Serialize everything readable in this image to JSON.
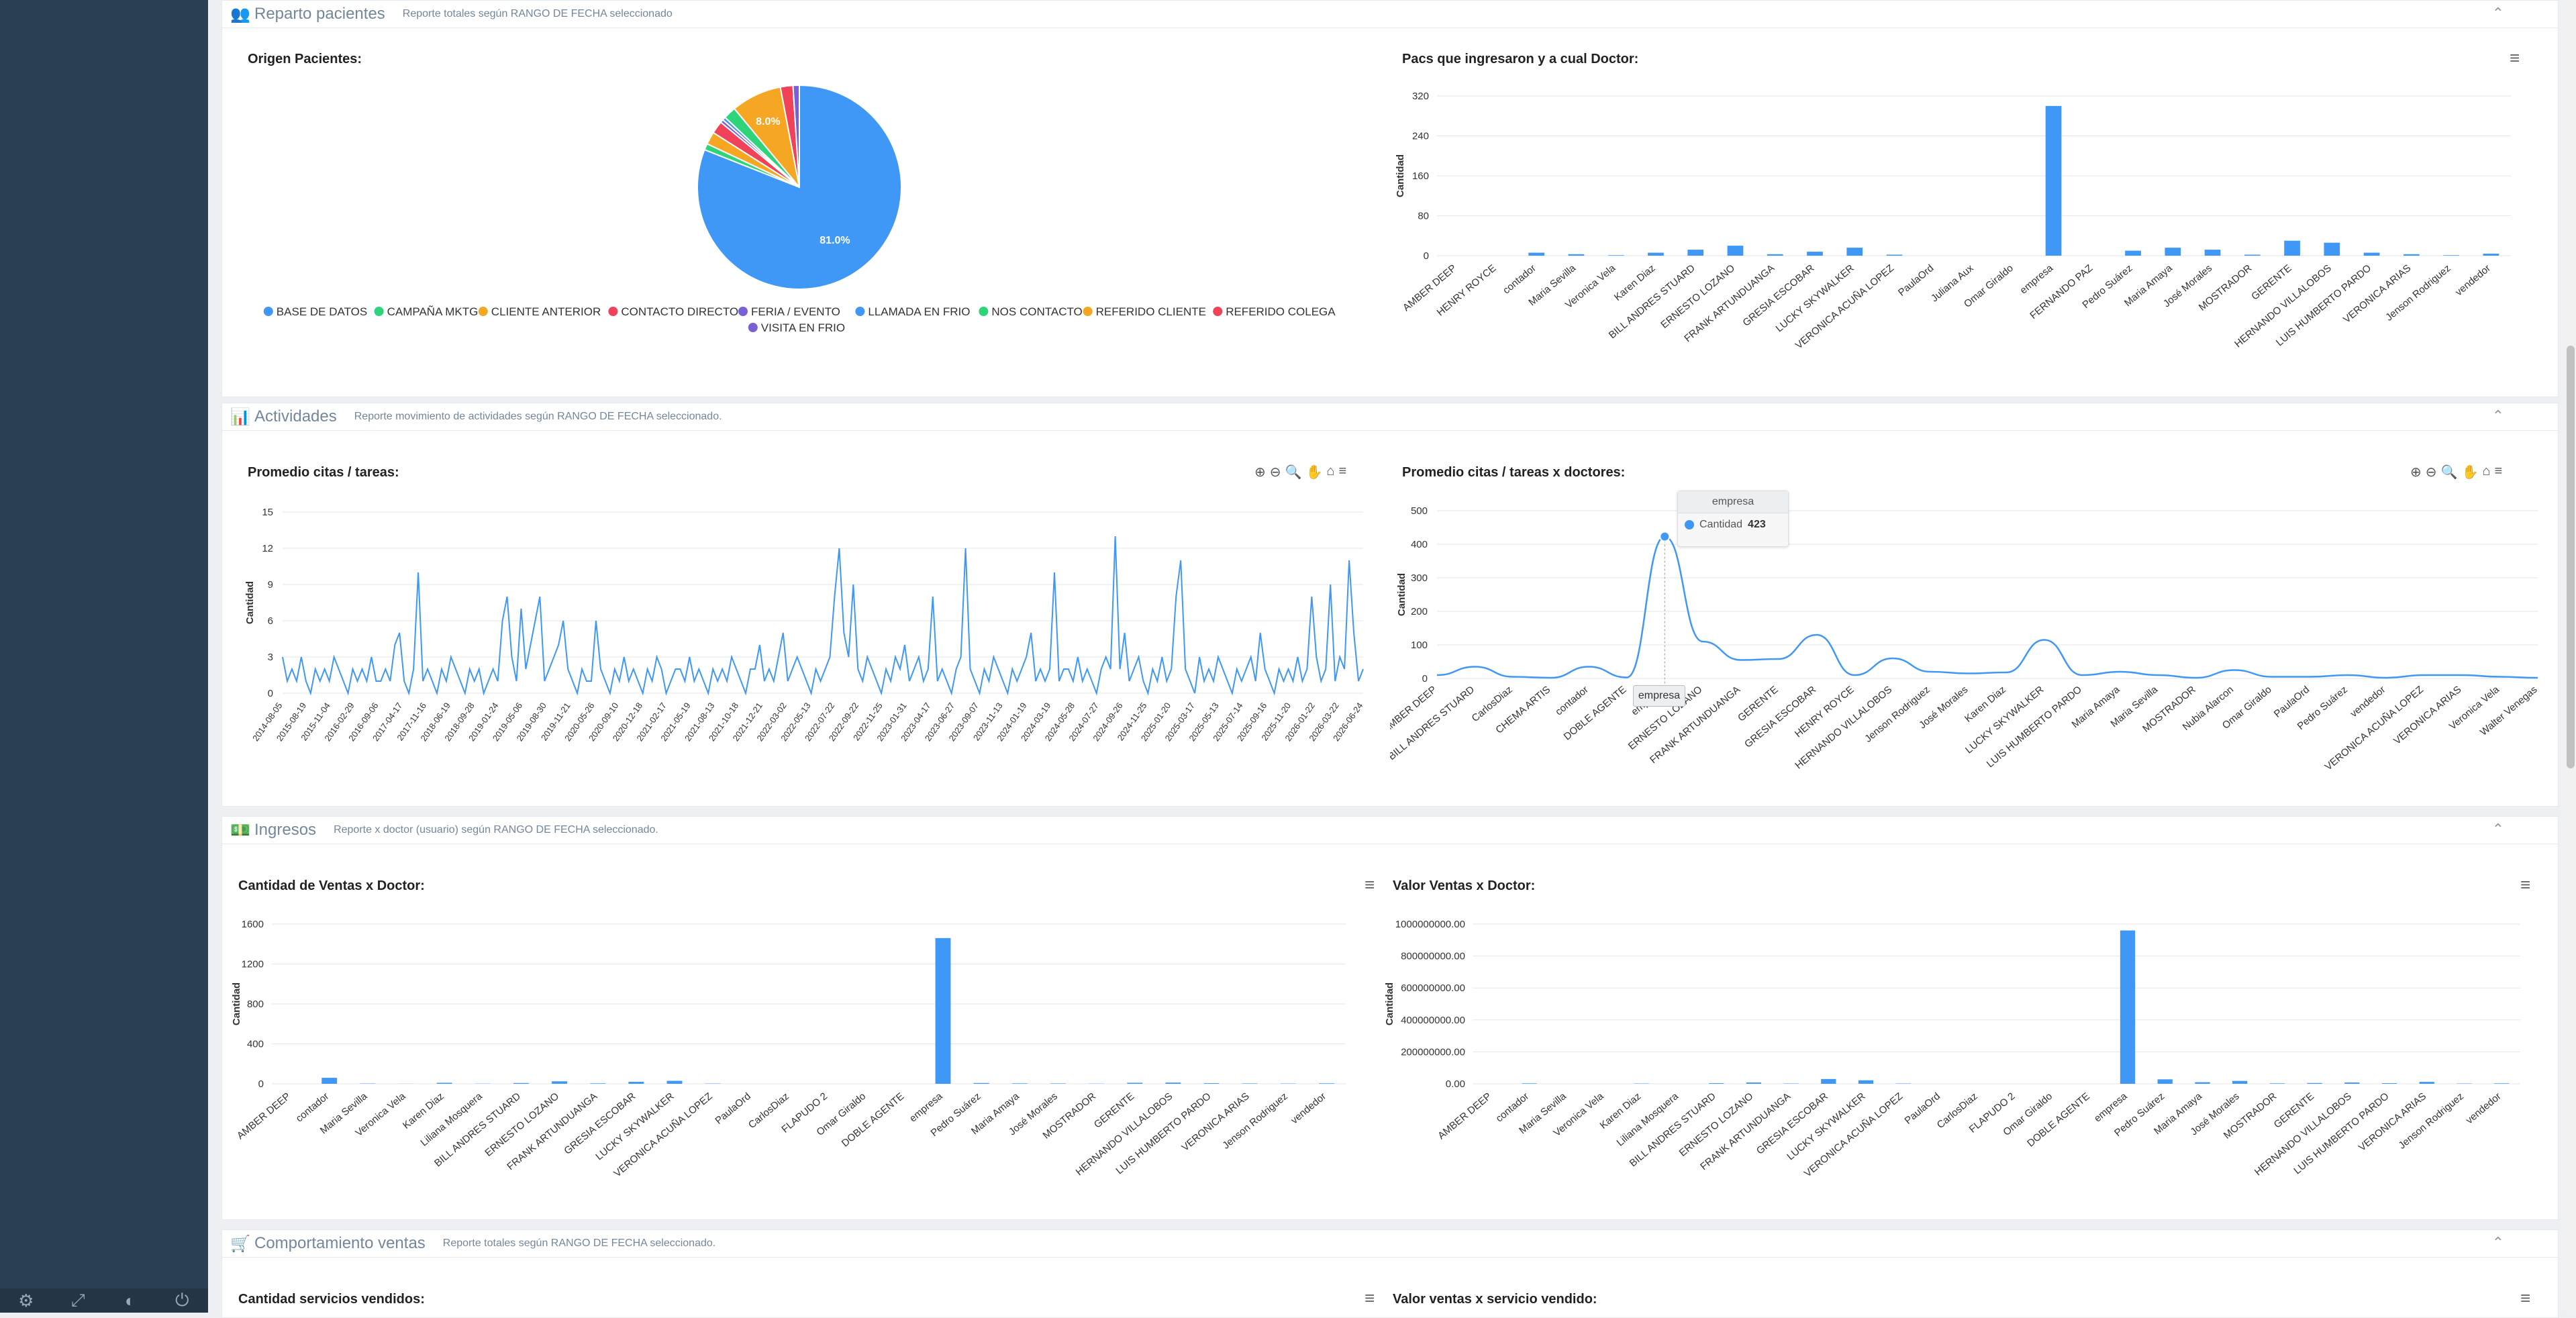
{
  "sidebar": {
    "footer_icons": [
      "gear-icon",
      "fullscreen-icon",
      "eye-slash-icon",
      "power-icon"
    ]
  },
  "colors": {
    "accent": "#3f97f6",
    "panel_text": "#73879c",
    "sidebar": "#2a3f54"
  },
  "panels": {
    "reparto": {
      "icon": "users-icon",
      "title": "Reparto pacientes",
      "subtitle": "Reporte totales según RANGO DE FECHA seleccionado"
    },
    "actividades": {
      "icon": "bar-chart-icon",
      "title": "Actividades",
      "subtitle": "Reporte movimiento de actividades según RANGO DE FECHA seleccionado."
    },
    "ingresos": {
      "icon": "money-icon",
      "title": "Ingresos",
      "subtitle": "Reporte x doctor (usuario) según RANGO DE FECHA seleccionado."
    },
    "comportamiento": {
      "icon": "cart-icon",
      "title": "Comportamiento ventas",
      "subtitle": "Reporte totales según RANGO DE FECHA seleccionado."
    }
  },
  "chart_titles": {
    "origen": "Origen Pacientes:",
    "pacs": "Pacs que ingresaron y a cual Doctor:",
    "promedio": "Promedio citas / tareas:",
    "promedio_doc": "Promedio citas / tareas x doctores:",
    "cant_ventas": "Cantidad de Ventas x Doctor:",
    "valor_ventas": "Valor Ventas x Doctor:",
    "servicios": "Cantidad servicios vendidos:",
    "valor_servicios": "Valor ventas x servicio vendido:"
  },
  "tooltip": {
    "title": "empresa",
    "series": "Cantidad",
    "value": "423",
    "crosshair_label": "empresa"
  },
  "chart_data": [
    {
      "id": "origen",
      "type": "pie",
      "slices": [
        {
          "label": "BASE DE DATOS",
          "value": 81.0,
          "color": "#3f97f6",
          "data_label": "81.0%"
        },
        {
          "label": "CAMPAÑA MKTG",
          "value": 1.0,
          "color": "#2ed47a"
        },
        {
          "label": "CLIENTE ANTERIOR",
          "value": 2.0,
          "color": "#f5a623"
        },
        {
          "label": "CONTACTO DIRECTO",
          "value": 2.0,
          "color": "#f0435a"
        },
        {
          "label": "FERIA / EVENTO",
          "value": 0.5,
          "color": "#7b5fd6"
        },
        {
          "label": "LLAMADA EN FRIO",
          "value": 0.5,
          "color": "#3f97f6"
        },
        {
          "label": "NOS CONTACTO",
          "value": 2.0,
          "color": "#2ed47a"
        },
        {
          "label": "REFERIDO CLIENTE",
          "value": 8.0,
          "color": "#f5a623",
          "data_label": "8.0%"
        },
        {
          "label": "REFERIDO COLEGA",
          "value": 2.0,
          "color": "#f0435a"
        },
        {
          "label": "VISITA EN FRIO",
          "value": 1.0,
          "color": "#7b5fd6"
        }
      ]
    },
    {
      "id": "pacs",
      "type": "bar",
      "ylabel": "Cantidad",
      "ylim": [
        0,
        320
      ],
      "yticks": [
        0,
        80,
        160,
        240,
        320
      ],
      "categories": [
        "AMBER DEEP",
        "HENRY ROYCE",
        "contador",
        "Maria Sevilla",
        "Veronica Vela",
        "Karen Diaz",
        "BILL ANDRES STUARD",
        "ERNESTO LOZANO",
        "FRANK ARTUNDUANGA",
        "GRESIA ESCOBAR",
        "LUCKY SKYWALKER",
        "VERONICA ACUÑA LOPEZ",
        "PaulaOrd",
        "Juliana Aux",
        "Omar Giraldo",
        "empresa",
        "FERNANDO PAZ",
        "Pedro Suárez",
        "Maria Amaya",
        "José Morales",
        "MOSTRADOR",
        "GERENTE",
        "HERNANDO VILLALOBOS",
        "LUIS HUMBERTO PARDO",
        "VERONICA ARIAS",
        "Jenson Rodriguez",
        "vendedor"
      ],
      "values": [
        0,
        0,
        6,
        3,
        1,
        6,
        12,
        20,
        3,
        8,
        16,
        2,
        0,
        0,
        0,
        300,
        0,
        10,
        16,
        12,
        2,
        30,
        26,
        6,
        3,
        1,
        4
      ]
    },
    {
      "id": "promedio",
      "type": "line",
      "ylabel": "Cantidad",
      "ylim": [
        0,
        15
      ],
      "yticks": [
        0,
        3,
        6,
        9,
        12,
        15
      ],
      "x_ticks": [
        "2014-08-05",
        "2015-08-19",
        "2015-11-04",
        "2016-02-29",
        "2016-09-06",
        "2017-04-17",
        "2017-11-16",
        "2018-06-19",
        "2018-09-28",
        "2019-01-24",
        "2019-05-06",
        "2019-08-30",
        "2019-11-21",
        "2020-05-26",
        "2020-09-10",
        "2020-12-18",
        "2021-02-17",
        "2021-05-19",
        "2021-08-13",
        "2021-10-18",
        "2021-12-21",
        "2022-03-02",
        "2022-05-13",
        "2022-07-22",
        "2022-09-22",
        "2022-11-25",
        "2023-01-31",
        "2023-04-17",
        "2023-06-27",
        "2023-09-07",
        "2023-11-13",
        "2024-01-19",
        "2024-03-19",
        "2024-05-28",
        "2024-07-27",
        "2024-09-26",
        "2024-11-25",
        "2025-01-20",
        "2025-03-17",
        "2025-05-13",
        "2025-07-14",
        "2025-09-16",
        "2025-11-20",
        "2026-01-22",
        "2026-03-22",
        "2026-06-24"
      ],
      "values": [
        3,
        1,
        2,
        1,
        3,
        1,
        0,
        2,
        1,
        2,
        1,
        3,
        2,
        1,
        0,
        2,
        1,
        2,
        1,
        3,
        1,
        1,
        2,
        1,
        4,
        5,
        1,
        0,
        2,
        10,
        1,
        2,
        1,
        0,
        2,
        1,
        3,
        2,
        1,
        0,
        2,
        1,
        2,
        0,
        1,
        2,
        1,
        6,
        8,
        3,
        1,
        7,
        2,
        4,
        6,
        8,
        1,
        2,
        3,
        4,
        6,
        2,
        1,
        0,
        2,
        1,
        1,
        6,
        2,
        1,
        0,
        2,
        1,
        3,
        1,
        2,
        1,
        0,
        2,
        1,
        3,
        2,
        0,
        1,
        2,
        2,
        1,
        3,
        1,
        2,
        1,
        0,
        2,
        1,
        2,
        1,
        3,
        2,
        1,
        0,
        2,
        2,
        4,
        1,
        2,
        1,
        3,
        5,
        1,
        2,
        3,
        2,
        1,
        0,
        2,
        1,
        2,
        3,
        8,
        12,
        5,
        3,
        9,
        2,
        1,
        3,
        2,
        1,
        0,
        2,
        1,
        3,
        2,
        4,
        1,
        2,
        3,
        1,
        2,
        8,
        1,
        2,
        1,
        0,
        2,
        3,
        12,
        2,
        1,
        0,
        2,
        1,
        3,
        2,
        1,
        0,
        2,
        1,
        2,
        3,
        5,
        1,
        2,
        1,
        2,
        10,
        1,
        2,
        2,
        1,
        3,
        1,
        2,
        1,
        0,
        2,
        3,
        2,
        13,
        2,
        5,
        1,
        2,
        3,
        1,
        0,
        2,
        1,
        3,
        1,
        2,
        8,
        11,
        2,
        1,
        0,
        3,
        1,
        2,
        1,
        3,
        2,
        1,
        0,
        2,
        1,
        2,
        3,
        1,
        5,
        2,
        1,
        0,
        2,
        1,
        2,
        1,
        3,
        1,
        2,
        8,
        3,
        1,
        2,
        9,
        1,
        3,
        2,
        11,
        5,
        1,
        2
      ]
    },
    {
      "id": "promedio_doc",
      "type": "line",
      "ylabel": "Cantidad",
      "ylim": [
        0,
        500
      ],
      "yticks": [
        0,
        100,
        200,
        300,
        400,
        500
      ],
      "categories": [
        "AMBER DEEP",
        "BILL ANDRES STUARD",
        "CarlosDiaz",
        "CHEMA ARTIS",
        "contador",
        "DOBLE AGENTE",
        "empresa",
        "ERNESTO LOZANO",
        "FRANK ARTUNDUANGA",
        "GERENTE",
        "GRESIA ESCOBAR",
        "HENRY ROYCE",
        "HERNANDO VILLALOBOS",
        "Jenson Rodriguez",
        "José Morales",
        "Karen Diaz",
        "LUCKY SKYWALKER",
        "LUIS HUMBERTO PARDO",
        "Maria Amaya",
        "Maria Sevilla",
        "MOSTRADOR",
        "Nubia Alarcon",
        "Omar Giraldo",
        "PaulaOrd",
        "Pedro Suárez",
        "vendedor",
        "VERONICA ACUÑA LOPEZ",
        "VERONICA ARIAS",
        "Veronica Vela",
        "Walter Venegas"
      ],
      "values": [
        10,
        35,
        5,
        2,
        35,
        3,
        423,
        110,
        55,
        58,
        130,
        10,
        60,
        20,
        15,
        18,
        115,
        10,
        20,
        10,
        2,
        25,
        5,
        5,
        10,
        2,
        10,
        10,
        5,
        2
      ]
    },
    {
      "id": "cant_ventas",
      "type": "bar",
      "ylabel": "Cantidad",
      "ylim": [
        0,
        1600
      ],
      "yticks": [
        0,
        400,
        800,
        1200,
        1600
      ],
      "categories": [
        "AMBER DEEP",
        "contador",
        "Maria Sevilla",
        "Veronica Vela",
        "Karen Diaz",
        "Liliana Mosquera",
        "BILL ANDRES STUARD",
        "ERNESTO LOZANO",
        "FRANK ARTUNDUANGA",
        "GRESIA ESCOBAR",
        "LUCKY SKYWALKER",
        "VERONICA ACUÑA LOPEZ",
        "PaulaOrd",
        "CarlosDiaz",
        "FLAPUDO 2",
        "Omar Giraldo",
        "DOBLE AGENTE",
        "empresa",
        "Pedro Suárez",
        "Maria Amaya",
        "José Morales",
        "MOSTRADOR",
        "GERENTE",
        "HERNANDO VILLALOBOS",
        "LUIS HUMBERTO PARDO",
        "VERONICA ARIAS",
        "Jenson Rodriguez",
        "vendedor"
      ],
      "values": [
        0,
        60,
        3,
        1,
        10,
        2,
        8,
        25,
        5,
        20,
        30,
        3,
        0,
        0,
        0,
        0,
        0,
        1460,
        8,
        5,
        4,
        2,
        10,
        12,
        6,
        4,
        3,
        5
      ]
    },
    {
      "id": "valor_ventas",
      "type": "bar",
      "ylabel": "Cantidad",
      "ylim": [
        0,
        1000000000
      ],
      "yticks_labels": [
        "0.00",
        "200000000.00",
        "400000000.00",
        "600000000.00",
        "800000000.00",
        "1000000000.00"
      ],
      "categories": [
        "AMBER DEEP",
        "contador",
        "Maria Sevilla",
        "Veronica Vela",
        "Karen Diaz",
        "Liliana Mosquera",
        "BILL ANDRES STUARD",
        "ERNESTO LOZANO",
        "FRANK ARTUNDUANGA",
        "GRESIA ESCOBAR",
        "LUCKY SKYWALKER",
        "VERONICA ACUÑA LOPEZ",
        "PaulaOrd",
        "CarlosDiaz",
        "FLAPUDO 2",
        "Omar Giraldo",
        "DOBLE AGENTE",
        "empresa",
        "Pedro Suárez",
        "Maria Amaya",
        "José Morales",
        "MOSTRADOR",
        "GERENTE",
        "HERNANDO VILLALOBOS",
        "LUIS HUMBERTO PARDO",
        "VERONICA ARIAS",
        "Jenson Rodriguez",
        "vendedor"
      ],
      "values": [
        0,
        3000000,
        0,
        0,
        2000000,
        0,
        4000000,
        8000000,
        2000000,
        30000000,
        22000000,
        2000000,
        0,
        0,
        0,
        0,
        0,
        960000000,
        28000000,
        10000000,
        18000000,
        3000000,
        5000000,
        8000000,
        4000000,
        12000000,
        2000000,
        3000000
      ]
    }
  ]
}
